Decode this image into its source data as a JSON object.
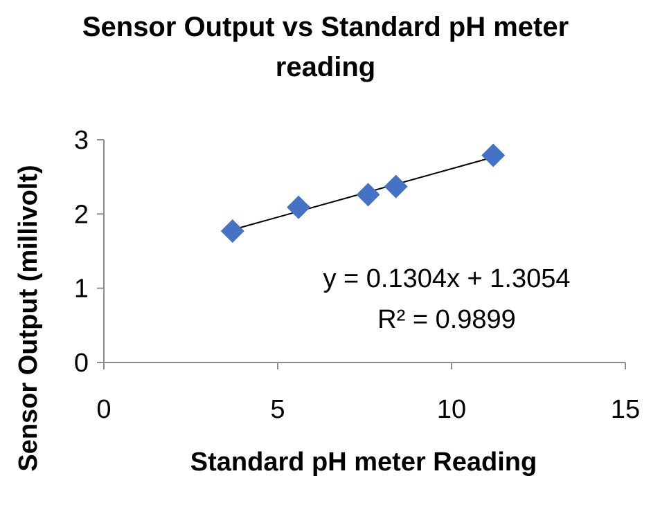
{
  "chart_data": {
    "type": "scatter",
    "title_line1": "Sensor Output vs Standard pH meter",
    "title_line2": "reading",
    "xlabel": "Standard pH meter Reading",
    "ylabel": "Sensor Output (millivolt)",
    "xlim": [
      0,
      15
    ],
    "ylim": [
      0,
      3
    ],
    "x_ticks": [
      0,
      5,
      10,
      15
    ],
    "y_ticks": [
      0,
      1,
      2,
      3
    ],
    "x_tick_labels": [
      "0",
      "5",
      "10",
      "15"
    ],
    "y_tick_labels": [
      "0",
      "1",
      "2",
      "3"
    ],
    "grid": false,
    "legend": "none",
    "marker": "diamond",
    "marker_color": "#4472C4",
    "points": [
      {
        "x": 3.7,
        "y": 1.77
      },
      {
        "x": 5.6,
        "y": 2.09
      },
      {
        "x": 7.6,
        "y": 2.26
      },
      {
        "x": 8.4,
        "y": 2.37
      },
      {
        "x": 11.2,
        "y": 2.79
      }
    ],
    "trendline": {
      "type": "linear",
      "slope": 0.1304,
      "intercept": 1.3054,
      "x_range": [
        3.7,
        11.2
      ],
      "color": "#000000",
      "equation": "y = 0.1304x + 1.3054",
      "r_squared": "R² = 0.9899"
    }
  }
}
